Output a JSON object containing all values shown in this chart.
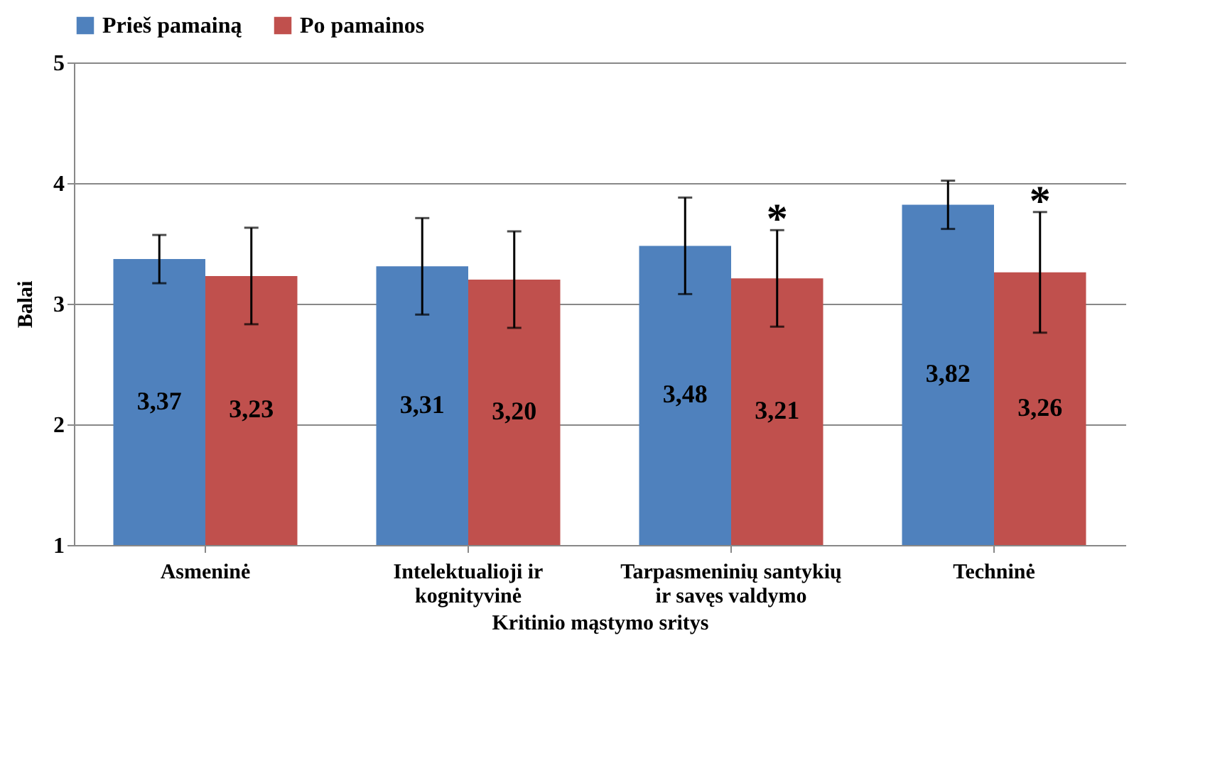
{
  "chart_data": {
    "type": "bar",
    "xlabel": "Kritinio mąstymo sritys",
    "ylabel": "Balai",
    "categories": [
      "Asmeninė",
      "Intelektualioji ir kognityvinė",
      "Tarpasmeninių santykių ir savęs valdymo",
      "Techninė"
    ],
    "series": [
      {
        "name": "Prieš pamainą",
        "color": "#4f81bd",
        "values": [
          3.37,
          3.31,
          3.48,
          3.82
        ],
        "errors": [
          0.2,
          0.4,
          0.4,
          0.2
        ],
        "value_labels": [
          "3,37",
          "3,31",
          "3,48",
          "3,82"
        ]
      },
      {
        "name": "Po pamainos",
        "color": "#c0504d",
        "values": [
          3.23,
          3.2,
          3.21,
          3.26
        ],
        "errors": [
          0.4,
          0.4,
          0.4,
          0.5
        ],
        "value_labels": [
          "3,23",
          "3,20",
          "3,21",
          "3,26"
        ]
      }
    ],
    "ylim": [
      1,
      5
    ],
    "yticks": [
      1,
      2,
      3,
      4,
      5
    ],
    "grid": "y",
    "legend": "top",
    "annotations": [
      "*",
      "*"
    ]
  }
}
